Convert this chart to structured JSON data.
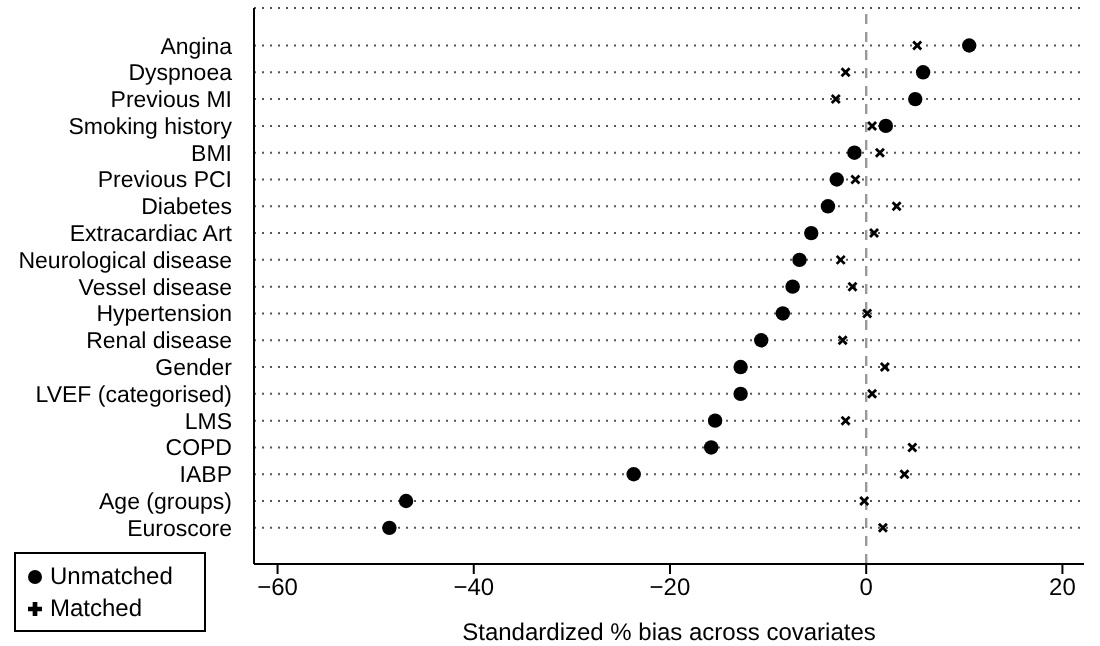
{
  "chart_data": {
    "type": "scatter",
    "orientation": "horizontal",
    "xlabel": "Standardized % bias across covariates",
    "categories": [
      "Angina",
      "Dyspnoea",
      "Previous MI",
      "Smoking history",
      "BMI",
      "Previous PCI",
      "Diabetes",
      "Extracardiac Art",
      "Neurological disease",
      "Vessel disease",
      "Hypertension",
      "Renal disease",
      "Gender",
      "LVEF (categorised)",
      "LMS",
      "COPD",
      "IABP",
      "Age (groups)",
      "Euroscore"
    ],
    "series": [
      {
        "name": "Unmatched",
        "color": "#000000",
        "marker": "circle",
        "values": [
          10.5,
          5.8,
          5.0,
          2.0,
          -1.2,
          -3.0,
          -3.9,
          -5.6,
          -6.8,
          -7.5,
          -8.5,
          -10.7,
          -12.8,
          -12.8,
          -15.4,
          -15.8,
          -23.7,
          -46.9,
          -48.6
        ]
      },
      {
        "name": "Matched",
        "color": "#000000",
        "marker": "cross",
        "values": [
          5.2,
          -2.1,
          -3.1,
          0.6,
          1.4,
          -1.1,
          3.1,
          0.8,
          -2.6,
          -1.4,
          0.1,
          -2.4,
          1.9,
          0.6,
          -2.1,
          4.7,
          3.9,
          -0.2,
          1.7
        ]
      }
    ],
    "xlim": [
      -62.4,
      22.2
    ],
    "xticks": [
      {
        "value": -60,
        "label": "−60"
      },
      {
        "value": -40,
        "label": "−40"
      },
      {
        "value": -20,
        "label": "−20"
      },
      0,
      20
    ],
    "ref_lines": [
      {
        "axis": "x",
        "value": 0,
        "color": "#999999",
        "line_style": "dashed"
      }
    ],
    "grid": "y",
    "line_style": "dotted",
    "legend": "bottom left"
  }
}
